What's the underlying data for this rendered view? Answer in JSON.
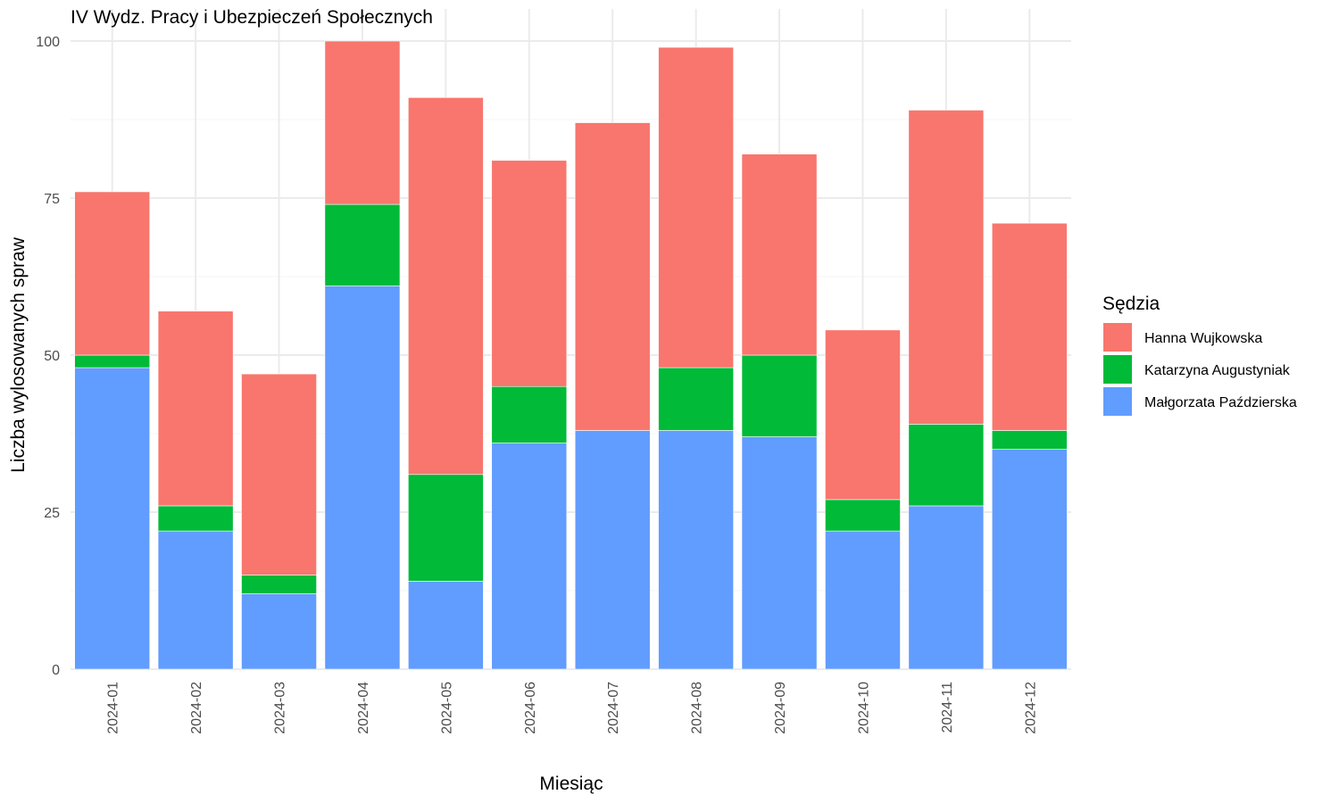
{
  "chart_data": {
    "type": "bar",
    "stacked": true,
    "title": "IV Wydz. Pracy i Ubezpieczeń Społecznych",
    "xlabel": "Miesiąc",
    "ylabel": "Liczba wylosowanych spraw",
    "ylim": [
      0,
      100
    ],
    "yticks": [
      "0",
      "25",
      "50",
      "75",
      "100"
    ],
    "grid": true,
    "legend_title": "Sędzia",
    "legend_position": "right",
    "categories": [
      "2024-01",
      "2024-02",
      "2024-03",
      "2024-04",
      "2024-05",
      "2024-06",
      "2024-07",
      "2024-08",
      "2024-09",
      "2024-10",
      "2024-11",
      "2024-12"
    ],
    "series": [
      {
        "name": "Małgorzata Paździerska",
        "color": "#619CFF",
        "values": [
          48,
          22,
          12,
          61,
          14,
          36,
          38,
          38,
          37,
          22,
          26,
          35
        ]
      },
      {
        "name": "Katarzyna Augustyniak",
        "color": "#00BA38",
        "values": [
          2,
          4,
          3,
          13,
          17,
          9,
          0,
          10,
          13,
          5,
          13,
          3
        ]
      },
      {
        "name": "Hanna Wujkowska",
        "color": "#F8766D",
        "values": [
          26,
          31,
          32,
          26,
          60,
          36,
          49,
          51,
          32,
          27,
          50,
          33
        ]
      }
    ],
    "legend_order": [
      "Hanna Wujkowska",
      "Katarzyna Augustyniak",
      "Małgorzata Paździerska"
    ]
  }
}
